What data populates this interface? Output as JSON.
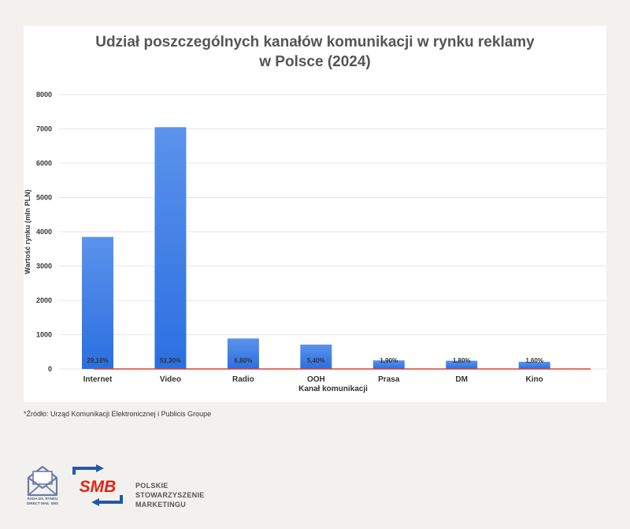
{
  "title_line1": "Udział poszczególnych kanałów komunikacji w rynku reklamy",
  "title_line2": "w Polsce (2024)",
  "source": "*Źródło: Urząd Komunikacji Elektronicznej i Publicis Groupe",
  "logos": {
    "rada_line1": "RADA DS. RYNKU",
    "rada_line2": "DIRECT MAIL SMS",
    "smb_mark": "SMB",
    "smb_line1": "POLSKIE",
    "smb_line2": "STOWARZYSZENIE",
    "smb_line3": "MARKETINGU"
  },
  "colors": {
    "bar_top": "#5b93ec",
    "bar_bottom": "#2b6fe0",
    "baseline": "#e0402a",
    "brand_blue": "#2457a8",
    "brand_red": "#e2231a"
  },
  "chart_data": {
    "type": "bar",
    "title": "Udział poszczególnych kanałów komunikacji w rynku reklamy w Polsce (2024)",
    "xlabel": "Kanał komunikacji",
    "ylabel": "Wartość rynku  (mln PLN)",
    "categories": [
      "Internet",
      "Video",
      "Radio",
      "OOH",
      "Prasa",
      "DM",
      "Kino"
    ],
    "values": [
      3850,
      7050,
      890,
      710,
      250,
      240,
      210
    ],
    "data_labels": [
      "29,10%",
      "53,30%",
      "6,80%",
      "5,40%",
      "1,90%",
      "1,80%",
      "1,60%"
    ],
    "ylim": [
      0,
      8000
    ],
    "yticks": [
      0,
      1000,
      2000,
      3000,
      4000,
      5000,
      6000,
      7000,
      8000
    ],
    "grid": true,
    "legend": "none"
  }
}
